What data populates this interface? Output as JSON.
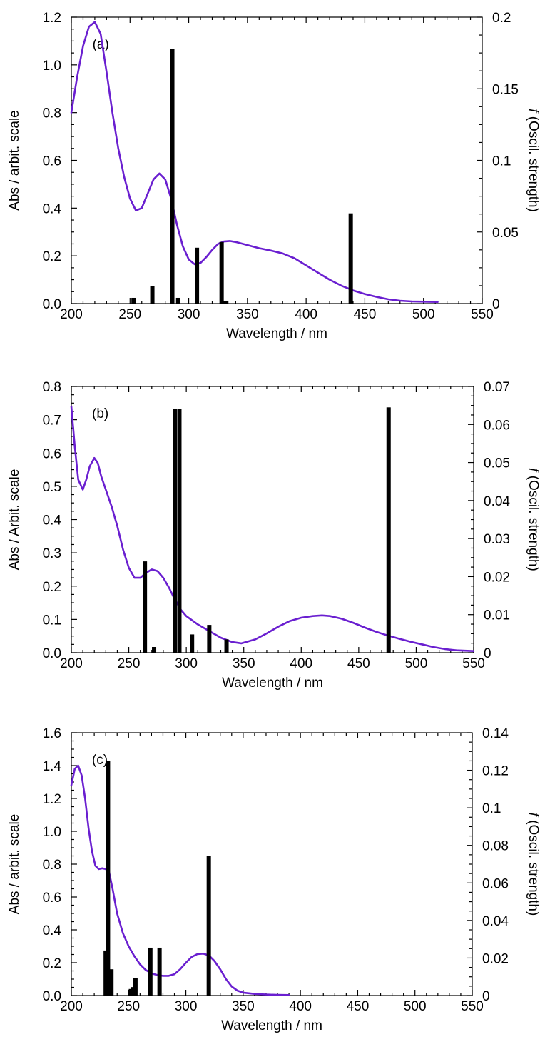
{
  "colors": {
    "spectrum": "#6a1fd0",
    "stick": "#000000",
    "axis": "#000000",
    "background": "#ffffff"
  },
  "chart_data": [
    {
      "type": "line",
      "panel_label": "(a)",
      "xlabel": "Wavelength / nm",
      "ylabel": "Abs / arbit. scale",
      "y2label_italic": "f",
      "y2label": " (Oscil. strength)",
      "xlim": [
        200,
        550
      ],
      "ylim": [
        0,
        1.2
      ],
      "y2lim": [
        0,
        0.2
      ],
      "xticks": [
        "200",
        "250",
        "300",
        "350",
        "400",
        "450",
        "500",
        "550"
      ],
      "yticks": [
        "0.0",
        "0.2",
        "0.4",
        "0.6",
        "0.8",
        "1.0",
        "1.2"
      ],
      "y2ticks": [
        "0",
        "0.05",
        "0.1",
        "0.15",
        "0.2"
      ],
      "grid": false,
      "series": [
        {
          "axis": "left",
          "style": "line",
          "x": [
            200,
            205,
            210,
            215,
            220,
            225,
            230,
            235,
            240,
            245,
            250,
            255,
            260,
            265,
            270,
            275,
            280,
            285,
            290,
            295,
            300,
            305,
            310,
            315,
            320,
            325,
            330,
            335,
            340,
            350,
            360,
            370,
            380,
            390,
            400,
            410,
            420,
            430,
            440,
            450,
            460,
            470,
            480,
            490,
            500,
            512
          ],
          "values": [
            0.8,
            0.95,
            1.08,
            1.16,
            1.18,
            1.13,
            0.97,
            0.8,
            0.65,
            0.53,
            0.44,
            0.39,
            0.4,
            0.46,
            0.52,
            0.545,
            0.52,
            0.44,
            0.33,
            0.24,
            0.185,
            0.165,
            0.17,
            0.195,
            0.225,
            0.25,
            0.26,
            0.262,
            0.258,
            0.245,
            0.232,
            0.222,
            0.21,
            0.19,
            0.16,
            0.13,
            0.1,
            0.075,
            0.055,
            0.04,
            0.028,
            0.018,
            0.012,
            0.009,
            0.008,
            0.007
          ]
        },
        {
          "axis": "right",
          "style": "sticks",
          "x": [
            253,
            269,
            286,
            291,
            307,
            328,
            332,
            438
          ],
          "values": [
            0.004,
            0.012,
            0.178,
            0.004,
            0.039,
            0.043,
            0.002,
            0.063
          ]
        }
      ]
    },
    {
      "type": "line",
      "panel_label": "(b)",
      "xlabel": "Wavelength / nm",
      "ylabel": "Abs / Arbit. scale",
      "y2label_italic": "f",
      "y2label": " (Oscil. strength)",
      "xlim": [
        200,
        550
      ],
      "ylim": [
        0,
        0.8
      ],
      "y2lim": [
        0,
        0.07
      ],
      "xticks": [
        "200",
        "250",
        "300",
        "350",
        "400",
        "450",
        "500",
        "550"
      ],
      "yticks": [
        "0.0",
        "0.1",
        "0.2",
        "0.3",
        "0.4",
        "0.5",
        "0.6",
        "0.7",
        "0.8"
      ],
      "y2ticks": [
        "0",
        "0.01",
        "0.02",
        "0.03",
        "0.04",
        "0.05",
        "0.06",
        "0.07"
      ],
      "grid": false,
      "series": [
        {
          "axis": "left",
          "style": "line",
          "x": [
            200,
            203,
            206,
            210,
            213,
            216,
            220,
            223,
            226,
            230,
            235,
            240,
            245,
            250,
            255,
            260,
            265,
            270,
            275,
            280,
            285,
            290,
            295,
            300,
            310,
            320,
            330,
            340,
            348,
            360,
            370,
            380,
            390,
            400,
            410,
            418,
            425,
            435,
            445,
            455,
            465,
            475,
            485,
            495,
            505,
            515,
            525,
            535,
            550
          ],
          "values": [
            0.74,
            0.62,
            0.52,
            0.49,
            0.52,
            0.56,
            0.585,
            0.57,
            0.53,
            0.49,
            0.44,
            0.38,
            0.31,
            0.255,
            0.225,
            0.225,
            0.24,
            0.25,
            0.245,
            0.225,
            0.195,
            0.16,
            0.13,
            0.11,
            0.085,
            0.065,
            0.045,
            0.032,
            0.028,
            0.04,
            0.058,
            0.078,
            0.095,
            0.105,
            0.11,
            0.112,
            0.11,
            0.102,
            0.09,
            0.076,
            0.063,
            0.052,
            0.042,
            0.033,
            0.025,
            0.017,
            0.011,
            0.007,
            0.005
          ]
        },
        {
          "axis": "right",
          "style": "sticks",
          "x": [
            264,
            272,
            290,
            294,
            305,
            320,
            335,
            476
          ],
          "values": [
            0.024,
            0.0015,
            0.064,
            0.064,
            0.0048,
            0.0073,
            0.0035,
            0.0645
          ]
        }
      ]
    },
    {
      "type": "line",
      "panel_label": "(c)",
      "xlabel": "Wavelength / nm",
      "ylabel": "Abs / arbit. scale",
      "y2label_italic": "f",
      "y2label": " (Oscil. strength)",
      "xlim": [
        200,
        550
      ],
      "ylim": [
        0,
        1.6
      ],
      "y2lim": [
        0,
        0.14
      ],
      "xticks": [
        "200",
        "250",
        "300",
        "350",
        "400",
        "450",
        "500",
        "550"
      ],
      "yticks": [
        "0.0",
        "0.2",
        "0.4",
        "0.6",
        "0.8",
        "1.0",
        "1.2",
        "1.4",
        "1.6"
      ],
      "y2ticks": [
        "0",
        "0.02",
        "0.04",
        "0.06",
        "0.08",
        "0.1",
        "0.12",
        "0.14"
      ],
      "grid": false,
      "series": [
        {
          "axis": "left",
          "style": "line",
          "x": [
            200,
            203,
            206,
            209,
            212,
            215,
            218,
            221,
            224,
            227,
            230,
            233,
            236,
            240,
            245,
            250,
            255,
            260,
            265,
            270,
            275,
            280,
            285,
            290,
            295,
            300,
            305,
            310,
            315,
            320,
            325,
            330,
            335,
            340,
            345,
            350,
            360,
            370,
            380,
            390
          ],
          "values": [
            1.28,
            1.38,
            1.4,
            1.34,
            1.2,
            1.02,
            0.88,
            0.79,
            0.77,
            0.775,
            0.77,
            0.75,
            0.65,
            0.5,
            0.38,
            0.3,
            0.24,
            0.19,
            0.155,
            0.135,
            0.125,
            0.12,
            0.12,
            0.13,
            0.16,
            0.2,
            0.235,
            0.252,
            0.255,
            0.245,
            0.21,
            0.16,
            0.1,
            0.055,
            0.03,
            0.018,
            0.01,
            0.006,
            0.004,
            0.003
          ]
        },
        {
          "axis": "right",
          "style": "sticks",
          "x": [
            230,
            232,
            235,
            252,
            254,
            256,
            269,
            277,
            320
          ],
          "values": [
            0.024,
            0.125,
            0.014,
            0.0035,
            0.0045,
            0.0095,
            0.0255,
            0.0255,
            0.0745
          ]
        }
      ]
    }
  ]
}
